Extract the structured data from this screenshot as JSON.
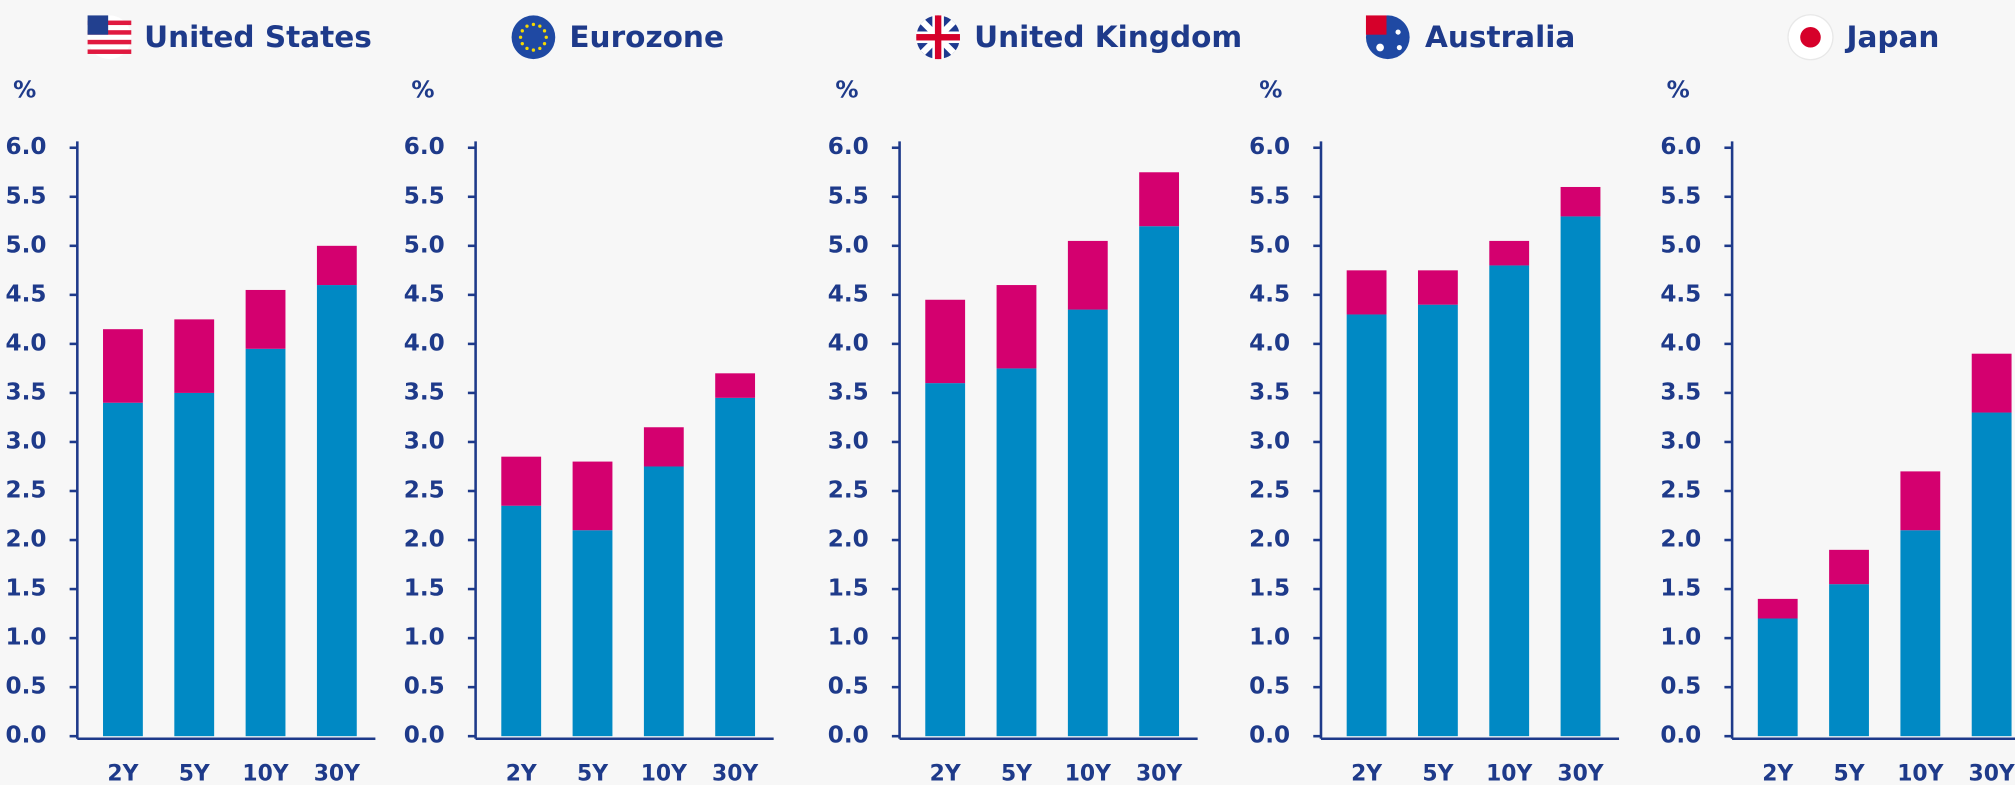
{
  "chart_data": [
    {
      "type": "bar",
      "stacked": true,
      "title": "United States",
      "y_label": "%",
      "categories": [
        "2Y",
        "5Y",
        "10Y",
        "30Y"
      ],
      "series": [
        {
          "color": "#0089c4",
          "values": [
            3.4,
            3.5,
            3.95,
            4.6
          ]
        },
        {
          "color": "#d4006f",
          "values": [
            0.75,
            0.75,
            0.6,
            0.4
          ]
        }
      ],
      "ylim": [
        0,
        6
      ],
      "yticks": [
        {
          "value": 0,
          "label": "0.0"
        },
        {
          "value": 0.5,
          "label": "0.5"
        },
        {
          "value": 1,
          "label": "1.0"
        },
        {
          "value": 1.5,
          "label": "1.5"
        },
        {
          "value": 2,
          "label": "2.0"
        },
        {
          "value": 2.5,
          "label": "2.5"
        },
        {
          "value": 3,
          "label": "3.0"
        },
        {
          "value": 3.5,
          "label": "3.5"
        },
        {
          "value": 4,
          "label": "4.0"
        },
        {
          "value": 4.5,
          "label": "4.5"
        },
        {
          "value": 5,
          "label": "5.0"
        },
        {
          "value": 5.5,
          "label": "5.5"
        },
        {
          "value": 6,
          "label": "6.0"
        }
      ]
    },
    {
      "type": "bar",
      "stacked": true,
      "title": "Eurozone",
      "y_label": "%",
      "categories": [
        "2Y",
        "5Y",
        "10Y",
        "30Y"
      ],
      "series": [
        {
          "color": "#0089c4",
          "values": [
            2.35,
            2.1,
            2.75,
            3.45
          ]
        },
        {
          "color": "#d4006f",
          "values": [
            0.5,
            0.7,
            0.4,
            0.25
          ]
        }
      ],
      "ylim": [
        0,
        6
      ],
      "yticks": [
        {
          "value": 0,
          "label": "0.0"
        },
        {
          "value": 0.5,
          "label": "0.5"
        },
        {
          "value": 1,
          "label": "1.0"
        },
        {
          "value": 1.5,
          "label": "1.5"
        },
        {
          "value": 2,
          "label": "2.0"
        },
        {
          "value": 2.5,
          "label": "2.5"
        },
        {
          "value": 3,
          "label": "3.0"
        },
        {
          "value": 3.5,
          "label": "3.5"
        },
        {
          "value": 4,
          "label": "4.0"
        },
        {
          "value": 4.5,
          "label": "4.5"
        },
        {
          "value": 5,
          "label": "5.0"
        },
        {
          "value": 5.5,
          "label": "5.5"
        },
        {
          "value": 6,
          "label": "6.0"
        }
      ]
    },
    {
      "type": "bar",
      "stacked": true,
      "title": "United Kingdom",
      "y_label": "%",
      "categories": [
        "2Y",
        "5Y",
        "10Y",
        "30Y"
      ],
      "series": [
        {
          "color": "#0089c4",
          "values": [
            3.6,
            3.75,
            4.35,
            5.2
          ]
        },
        {
          "color": "#d4006f",
          "values": [
            0.85,
            0.85,
            0.7,
            0.55
          ]
        }
      ],
      "ylim": [
        0,
        6
      ],
      "yticks": [
        {
          "value": 0,
          "label": "0.0"
        },
        {
          "value": 0.5,
          "label": "0.5"
        },
        {
          "value": 1,
          "label": "1.0"
        },
        {
          "value": 1.5,
          "label": "1.5"
        },
        {
          "value": 2,
          "label": "2.0"
        },
        {
          "value": 2.5,
          "label": "2.5"
        },
        {
          "value": 3,
          "label": "3.0"
        },
        {
          "value": 3.5,
          "label": "3.5"
        },
        {
          "value": 4,
          "label": "4.0"
        },
        {
          "value": 4.5,
          "label": "4.5"
        },
        {
          "value": 5,
          "label": "5.0"
        },
        {
          "value": 5.5,
          "label": "5.5"
        },
        {
          "value": 6,
          "label": "6.0"
        }
      ]
    },
    {
      "type": "bar",
      "stacked": true,
      "title": "Australia",
      "y_label": "%",
      "categories": [
        "2Y",
        "5Y",
        "10Y",
        "30Y"
      ],
      "series": [
        {
          "color": "#0089c4",
          "values": [
            4.3,
            4.4,
            4.8,
            5.3
          ]
        },
        {
          "color": "#d4006f",
          "values": [
            0.45,
            0.35,
            0.25,
            0.3
          ]
        }
      ],
      "ylim": [
        0,
        6
      ],
      "yticks": [
        {
          "value": 0,
          "label": "0.0"
        },
        {
          "value": 0.5,
          "label": "0.5"
        },
        {
          "value": 1,
          "label": "1.0"
        },
        {
          "value": 1.5,
          "label": "1.5"
        },
        {
          "value": 2,
          "label": "2.0"
        },
        {
          "value": 2.5,
          "label": "2.5"
        },
        {
          "value": 3,
          "label": "3.0"
        },
        {
          "value": 3.5,
          "label": "3.5"
        },
        {
          "value": 4,
          "label": "4.0"
        },
        {
          "value": 4.5,
          "label": "4.5"
        },
        {
          "value": 5,
          "label": "5.0"
        },
        {
          "value": 5.5,
          "label": "5.5"
        },
        {
          "value": 6,
          "label": "6.0"
        }
      ]
    },
    {
      "type": "bar",
      "stacked": true,
      "title": "Japan",
      "y_label": "%",
      "categories": [
        "2Y",
        "5Y",
        "10Y",
        "30Y"
      ],
      "series": [
        {
          "color": "#0089c4",
          "values": [
            1.2,
            1.55,
            2.1,
            3.3
          ]
        },
        {
          "color": "#d4006f",
          "values": [
            0.2,
            0.35,
            0.6,
            0.6
          ]
        }
      ],
      "ylim": [
        0,
        6
      ],
      "yticks": [
        {
          "value": 0,
          "label": "0.0"
        },
        {
          "value": 0.5,
          "label": "0.5"
        },
        {
          "value": 1,
          "label": "1.0"
        },
        {
          "value": 1.5,
          "label": "1.5"
        },
        {
          "value": 2,
          "label": "2.0"
        },
        {
          "value": 2.5,
          "label": "2.5"
        },
        {
          "value": 3,
          "label": "3.0"
        },
        {
          "value": 3.5,
          "label": "3.5"
        },
        {
          "value": 4,
          "label": "4.0"
        },
        {
          "value": 4.5,
          "label": "4.5"
        },
        {
          "value": 5,
          "label": "5.0"
        },
        {
          "value": 5.5,
          "label": "5.5"
        },
        {
          "value": 6,
          "label": "6.0"
        }
      ]
    }
  ]
}
